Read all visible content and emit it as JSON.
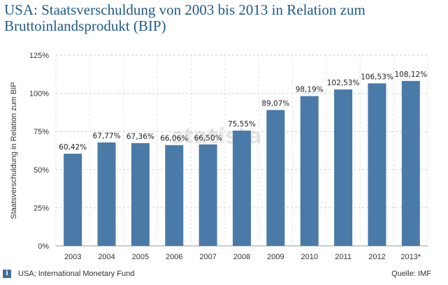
{
  "header": {
    "title": "USA: Staatsverschuldung von 2003 bis 2013 in Relation zum Bruttoinlandsprodukt (BIP)"
  },
  "chart_data": {
    "type": "bar",
    "title": "USA: Staatsverschuldung von 2003 bis 2013 in Relation zum Bruttoinlandsprodukt (BIP)",
    "ylabel": "Staatsverschuldung in Relation zum BIP",
    "xlabel": "",
    "ylim": [
      0,
      125
    ],
    "yticks": [
      0,
      25,
      50,
      75,
      100,
      125
    ],
    "ytick_labels": [
      "0%",
      "25%",
      "50%",
      "75%",
      "100%",
      "125%"
    ],
    "grid": true,
    "categories": [
      "2003",
      "2004",
      "2005",
      "2006",
      "2007",
      "2008",
      "2009",
      "2010",
      "2011",
      "2012",
      "2013*"
    ],
    "values": [
      60.42,
      67.77,
      67.36,
      66.06,
      66.5,
      75.55,
      89.07,
      98.19,
      102.53,
      106.53,
      108.12
    ],
    "value_labels": [
      "60,42%",
      "67,77%",
      "67,36%",
      "66,06%",
      "66,50%",
      "75,55%",
      "89,07%",
      "98,19%",
      "102,53%",
      "106,53%",
      "108,12%"
    ],
    "bar_color": "#4a7aa7"
  },
  "watermark": "statista",
  "footer": {
    "info_icon": "info-icon",
    "info_symbol": "i",
    "source_left": "USA; International Monetary Fund",
    "source_right": "Quelle: IMF"
  }
}
